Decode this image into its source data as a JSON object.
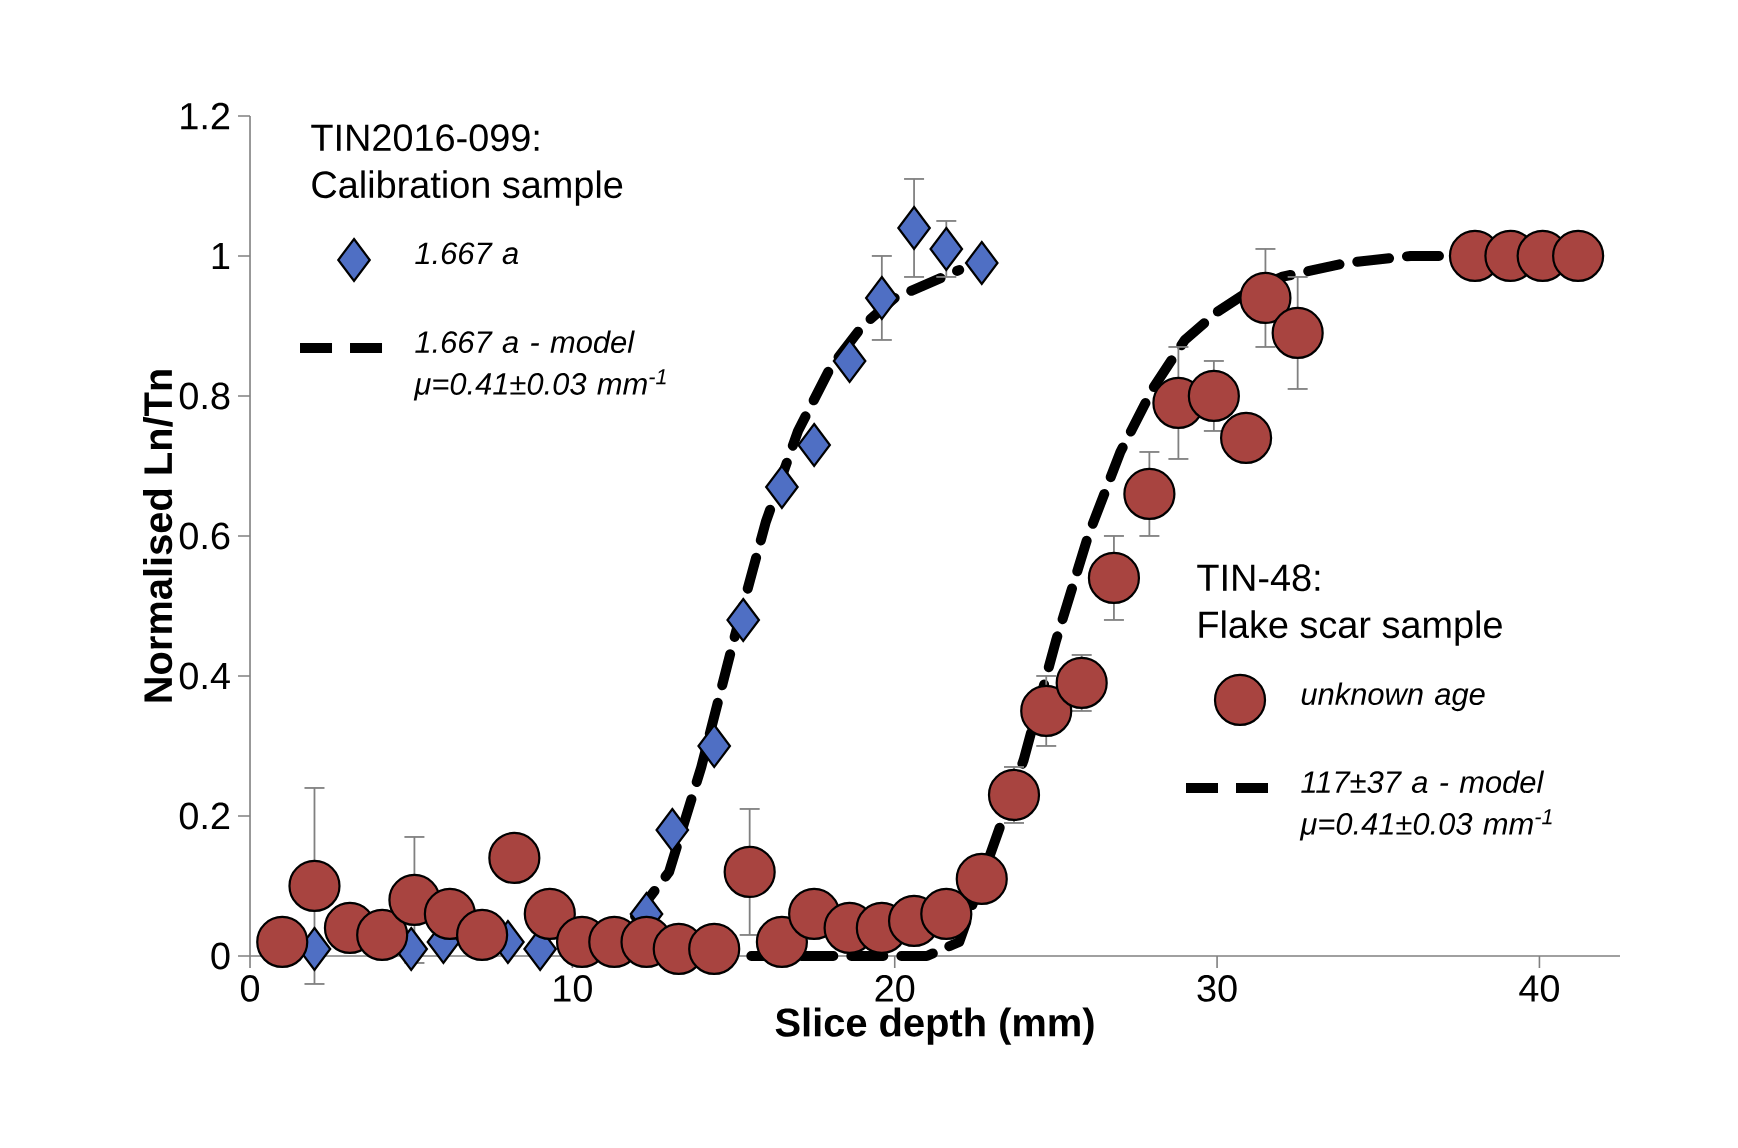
{
  "chart_data": {
    "type": "scatter",
    "xlabel": "Slice depth (mm)",
    "ylabel": "Normalised Ln/Tn",
    "xlim": [
      0,
      42.5
    ],
    "ylim": [
      0,
      1.2
    ],
    "xticks": [
      0,
      10,
      20,
      30,
      40
    ],
    "yticks": [
      0,
      0.2,
      0.4,
      0.6,
      0.8,
      1,
      1.2
    ],
    "legend": "left",
    "annotations": [
      "TIN2016-099:",
      "Calibration sample",
      "TIN-48:",
      "Flake scar sample"
    ],
    "series": [
      {
        "name": "1.667 a",
        "color": "#4f6fc4",
        "marker": "diamond",
        "x": [
          2,
          5,
          6,
          8,
          9,
          12.3,
          13.1,
          14.4,
          15.3,
          16.5,
          17.5,
          18.6,
          19.6,
          20.6,
          21.6,
          22.7
        ],
        "values": [
          0.01,
          0.01,
          0.02,
          0.02,
          0.01,
          0.06,
          0.18,
          0.3,
          0.48,
          0.67,
          0.73,
          0.85,
          0.94,
          1.04,
          1.01,
          0.99
        ],
        "errors": [
          null,
          null,
          null,
          null,
          null,
          null,
          null,
          null,
          null,
          null,
          null,
          null,
          0.06,
          0.07,
          0.04,
          null
        ]
      },
      {
        "type": "line",
        "name": "1.667 a - model μ=0.41±0.03 mm$^{-1}$",
        "color": "#000000",
        "marker": "none",
        "line_style": "dashed",
        "x": [
          11,
          13,
          14,
          15,
          16,
          17,
          18,
          19,
          20,
          21,
          22
        ],
        "values": [
          0,
          0.12,
          0.27,
          0.45,
          0.62,
          0.75,
          0.84,
          0.9,
          0.94,
          0.96,
          0.98
        ]
      },
      {
        "name": "unknown age",
        "color": "#a84440",
        "marker": "circle",
        "x": [
          1,
          2,
          3.1,
          4.1,
          5.1,
          6.2,
          7.2,
          8.2,
          9.3,
          10.3,
          11.3,
          12.3,
          13.3,
          14.4,
          15.5,
          16.5,
          17.5,
          18.6,
          19.6,
          20.6,
          21.6,
          22.7,
          23.7,
          24.7,
          25.8,
          26.8,
          27.9,
          28.8,
          29.9,
          30.9,
          31.5,
          32.5,
          38,
          39.1,
          40.1,
          41.2
        ],
        "values": [
          0.02,
          0.1,
          0.04,
          0.03,
          0.08,
          0.06,
          0.03,
          0.14,
          0.06,
          0.02,
          0.02,
          0.02,
          0.01,
          0.01,
          0.12,
          0.02,
          0.06,
          0.04,
          0.04,
          0.05,
          0.06,
          0.11,
          0.23,
          0.35,
          0.39,
          0.54,
          0.66,
          0.79,
          0.8,
          0.74,
          0.94,
          0.89,
          1,
          1,
          1,
          1
        ],
        "errors": [
          null,
          0.14,
          null,
          null,
          0.09,
          null,
          null,
          null,
          null,
          null,
          null,
          null,
          null,
          null,
          0.09,
          null,
          null,
          null,
          null,
          null,
          null,
          0.03,
          0.04,
          0.05,
          0.04,
          0.06,
          0.06,
          0.08,
          0.05,
          null,
          0.07,
          0.08,
          null,
          null,
          null,
          null
        ]
      },
      {
        "type": "line",
        "name": "117±37 a - model μ=0.41±0.03 mm$^{-1}$",
        "color": "#000000",
        "marker": "none",
        "line_style": "dashed",
        "x": [
          14,
          16,
          18,
          20,
          21,
          22,
          24,
          25,
          26,
          27,
          28,
          29,
          30,
          31,
          32,
          33,
          34,
          36,
          38
        ],
        "values": [
          0,
          0,
          0,
          0,
          0,
          0.02,
          0.28,
          0.45,
          0.6,
          0.72,
          0.81,
          0.88,
          0.92,
          0.95,
          0.97,
          0.98,
          0.99,
          1,
          1
        ]
      }
    ]
  }
}
